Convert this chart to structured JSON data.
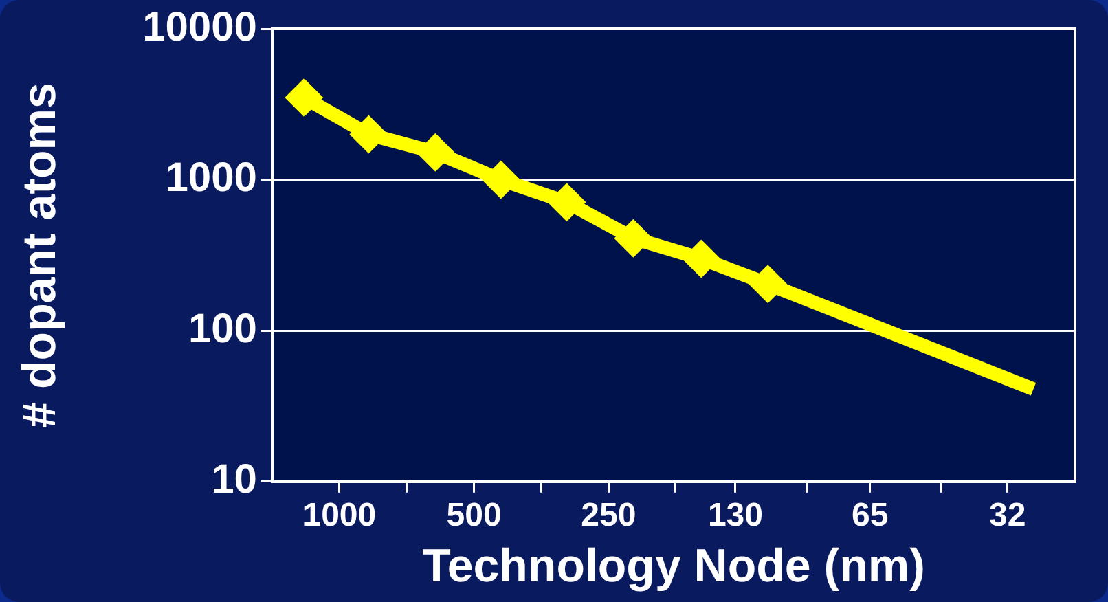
{
  "chart_data": {
    "type": "line",
    "xlabel": "Technology Node (nm)",
    "ylabel": "# dopant atoms",
    "log": "xy",
    "grid": "y",
    "legend": false,
    "xlim": [
      1414,
      22.6
    ],
    "xticks": [
      1000,
      {
        "value": 707,
        "label": null
      },
      500,
      {
        "value": 354,
        "label": null
      },
      250,
      {
        "value": 177,
        "label": null
      },
      130,
      {
        "value": 90,
        "label": null
      },
      65,
      {
        "value": 45,
        "label": null
      },
      32
    ],
    "ylim": [
      10,
      10000
    ],
    "yticks": [
      10,
      100,
      1000,
      10000
    ],
    "series": [
      {
        "color": "#ffff00",
        "marker": "diamond",
        "x": [
          1200,
          860,
          610,
          435,
          310,
          220,
          155,
          110
        ],
        "values": [
          3500,
          2000,
          1520,
          1000,
          710,
          410,
          300,
          204
        ]
      },
      {
        "color": "#ffff00",
        "marker": "none",
        "x": [
          110,
          28
        ],
        "values": [
          204,
          41
        ]
      }
    ]
  }
}
